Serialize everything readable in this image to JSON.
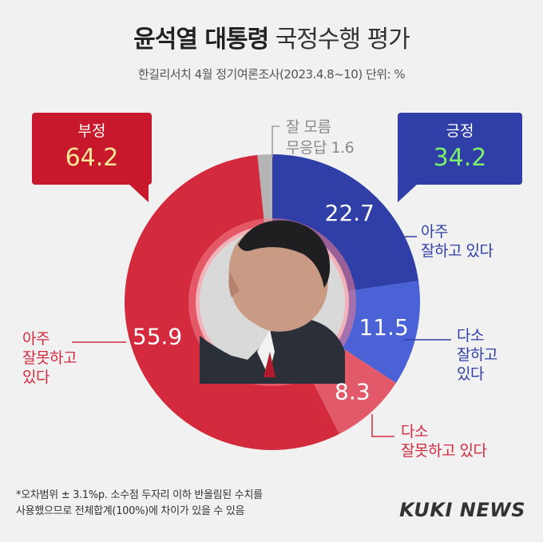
{
  "title_bold": "윤석열 대통령",
  "title_rest": "국정수행 평가",
  "subtitle": "한길리서치 4월 정기여론조사(2023.4.8~10) 단위: %",
  "negative": {
    "label": "부정",
    "value": "64.2"
  },
  "positive": {
    "label": "긍정",
    "value": "34.2"
  },
  "dont_know": {
    "line1": "잘 모름",
    "line2": "무응답 1.6"
  },
  "chart_data": {
    "type": "pie",
    "title": "윤석열 대통령 국정수행 평가",
    "unit": "%",
    "slices": [
      {
        "label": "아주 잘하고 있다",
        "value": 22.7,
        "color": "#2f3fa7"
      },
      {
        "label": "다소 잘하고 있다",
        "value": 11.5,
        "color": "#4a62d6"
      },
      {
        "label": "다소 잘못하고 있다",
        "value": 8.3,
        "color": "#e25a6a"
      },
      {
        "label": "아주 잘못하고 있다",
        "value": 55.9,
        "color": "#d42a3e"
      },
      {
        "label": "잘 모름 무응답",
        "value": 1.6,
        "color": "#b4b4b4"
      }
    ],
    "totals": {
      "긍정": 34.2,
      "부정": 64.2,
      "잘 모름/무응답": 1.6
    }
  },
  "labels": {
    "very_good": [
      "아주",
      "잘하고 있다"
    ],
    "good": [
      "다소",
      "잘하고",
      "있다"
    ],
    "bad": [
      "다소",
      "잘못하고 있다"
    ],
    "very_bad": [
      "아주",
      "잘못하고",
      "있다"
    ]
  },
  "footnote": [
    "*오차범위 ± 3.1%p. 소수점 두자리 이하 반올림된 수치를",
    "사용했으므로 전체합계(100%)에 차이가 있을 수 있음"
  ],
  "logo": "KUKI NEWS"
}
